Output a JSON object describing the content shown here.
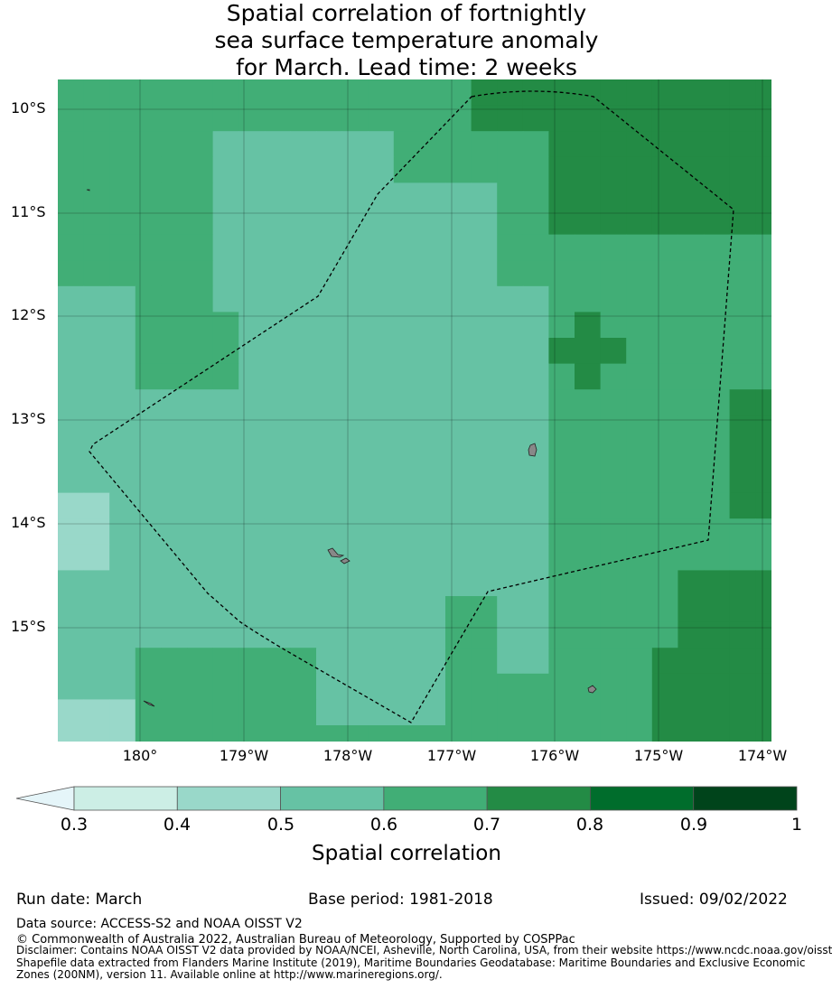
{
  "title": {
    "line1": "Spatial correlation of fortnightly",
    "line2": "sea surface temperature anomaly",
    "line3": "for March. Lead time: 2 weeks"
  },
  "map": {
    "lat_labels": [
      "10°S",
      "11°S",
      "12°S",
      "13°S",
      "14°S",
      "15°S"
    ],
    "lon_labels": [
      "180°",
      "179°W",
      "178°W",
      "177°W",
      "176°W",
      "175°W",
      "174°W"
    ],
    "extent": {
      "lon_min": -180.8,
      "lon_max": -173.9,
      "lat_min": -16.0,
      "lat_max": -9.7
    },
    "color_legend": [
      "0.3-0.4",
      "0.4-0.5",
      "0.5-0.6",
      "0.6-0.7",
      "0.7-0.8"
    ]
  },
  "colorbar": {
    "ticks": [
      "0.3",
      "0.4",
      "0.5",
      "0.6",
      "0.7",
      "0.8",
      "0.9",
      "1"
    ],
    "colors": [
      "#cceee5",
      "#99d8c9",
      "#66c2a4",
      "#41ae76",
      "#238b45",
      "#006d2c",
      "#00441b"
    ],
    "extend_color": "#e5f5f9",
    "label": "Spatial correlation"
  },
  "meta": {
    "run_date": "Run date: March",
    "base_period": "Base period: 1981-2018",
    "issued": "Issued: 09/02/2022"
  },
  "footer": {
    "data_source": "Data source: ACCESS-S2 and NOAA OISST V2",
    "copyright": "© Commonwealth of Australia 2022, Australian Bureau of Meteorology, Supported by COSPPac",
    "disclaimer_1": "Disclaimer: Contains NOAA OISST V2 data provided by NOAA/NCEI, Asheville, North Carolina, USA, from their website https://www.ncdc.noaa.gov/oisst",
    "disclaimer_2": "Shapefile data extracted from Flanders Marine Institute (2019), Maritime Boundaries Geodatabase: Maritime Boundaries and Exclusive Economic",
    "disclaimer_3": "Zones (200NM), version 11. Available online at http://www.marineregions.org/."
  }
}
